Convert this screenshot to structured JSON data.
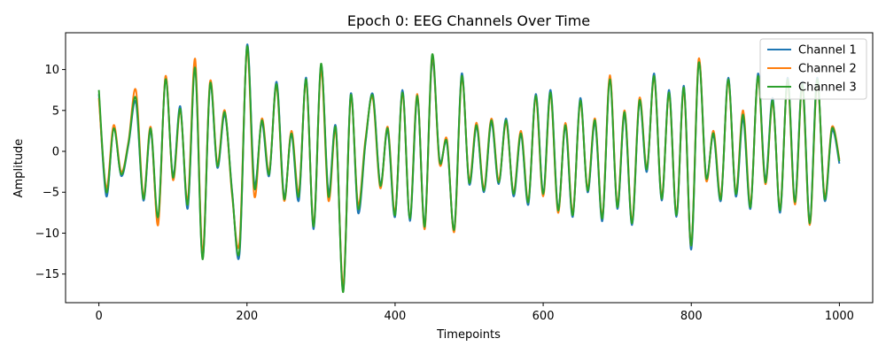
{
  "chart_data": {
    "type": "line",
    "title": "Epoch 0: EEG Channels Over Time",
    "xlabel": "Timepoints",
    "ylabel": "Amplitude",
    "xlim": [
      -45,
      1045
    ],
    "ylim": [
      -18.5,
      14.5
    ],
    "xticks": [
      0,
      200,
      400,
      600,
      800,
      1000
    ],
    "xtick_labels": [
      "0",
      "200",
      "400",
      "600",
      "800",
      "1000"
    ],
    "yticks": [
      10,
      5,
      0,
      -5,
      -10,
      -15
    ],
    "ytick_labels": [
      "10",
      "5",
      "0",
      "−5",
      "−10",
      "−15"
    ],
    "legend_position": "top-right",
    "grid": false,
    "series": [
      {
        "name": "Channel 1",
        "color": "#1f77b4",
        "x": [
          0,
          10,
          20,
          30,
          40,
          50,
          60,
          70,
          80,
          90,
          100,
          110,
          120,
          130,
          140,
          150,
          160,
          170,
          180,
          190,
          200,
          210,
          220,
          230,
          240,
          250,
          260,
          270,
          280,
          290,
          300,
          310,
          320,
          330,
          340,
          350,
          360,
          370,
          380,
          390,
          400,
          410,
          420,
          430,
          440,
          450,
          460,
          470,
          480,
          490,
          500,
          510,
          520,
          530,
          540,
          550,
          560,
          570,
          580,
          590,
          600,
          610,
          620,
          630,
          640,
          650,
          660,
          670,
          680,
          690,
          700,
          710,
          720,
          730,
          740,
          750,
          760,
          770,
          780,
          790,
          800,
          810,
          820,
          830,
          840,
          850,
          860,
          870,
          880,
          890,
          900,
          910,
          920,
          930,
          940,
          950,
          960,
          970,
          980,
          990,
          1000
        ],
        "values": [
          7.0,
          -5.5,
          3.0,
          -3.0,
          0.8,
          6.0,
          -6.0,
          2.5,
          -8.5,
          9.0,
          -3.0,
          5.5,
          -7.0,
          10.5,
          -13.0,
          8.0,
          -2.0,
          4.5,
          -5.0,
          -12.5,
          13.0,
          -4.0,
          3.5,
          -3.0,
          8.5,
          -5.5,
          2.0,
          -6.0,
          9.0,
          -9.5,
          10.5,
          -5.0,
          3.0,
          -17.0,
          7.0,
          -7.5,
          1.0,
          7.0,
          -4.0,
          2.5,
          -8.0,
          7.5,
          -8.5,
          6.5,
          -9.0,
          11.0,
          -1.0,
          1.0,
          -9.5,
          9.5,
          -4.0,
          3.0,
          -5.0,
          3.5,
          -4.0,
          4.0,
          -5.5,
          2.0,
          -6.5,
          7.0,
          -5.0,
          7.5,
          -7.0,
          3.0,
          -8.0,
          6.5,
          -5.0,
          3.5,
          -8.5,
          9.0,
          -7.0,
          4.5,
          -9.0,
          6.0,
          -2.5,
          9.5,
          -6.0,
          7.5,
          -8.0,
          8.0,
          -12.0,
          11.0,
          -3.0,
          2.0,
          -6.0,
          9.0,
          -5.5,
          4.0,
          -7.0,
          9.5,
          -3.5,
          6.5,
          -7.5,
          9.0,
          -6.0,
          8.5,
          -8.5,
          9.0,
          -6.0,
          2.5,
          -1.5
        ]
      },
      {
        "name": "Channel 2",
        "color": "#ff7f0e",
        "x": [
          0,
          10,
          20,
          30,
          40,
          50,
          60,
          70,
          80,
          90,
          100,
          110,
          120,
          130,
          140,
          150,
          160,
          170,
          180,
          190,
          200,
          210,
          220,
          230,
          240,
          250,
          260,
          270,
          280,
          290,
          300,
          310,
          320,
          330,
          340,
          350,
          360,
          370,
          380,
          390,
          400,
          410,
          420,
          430,
          440,
          450,
          460,
          470,
          480,
          490,
          500,
          510,
          520,
          530,
          540,
          550,
          560,
          570,
          580,
          590,
          600,
          610,
          620,
          630,
          640,
          650,
          660,
          670,
          680,
          690,
          700,
          710,
          720,
          730,
          740,
          750,
          760,
          770,
          780,
          790,
          800,
          810,
          820,
          830,
          840,
          850,
          860,
          870,
          880,
          890,
          900,
          910,
          920,
          930,
          940,
          950,
          960,
          970,
          980,
          990,
          1000
        ],
        "values": [
          6.5,
          -4.5,
          3.2,
          -2.5,
          1.2,
          7.5,
          -5.5,
          3.0,
          -9.0,
          9.2,
          -3.5,
          5.0,
          -6.0,
          11.3,
          -12.5,
          8.5,
          -1.5,
          5.0,
          -5.5,
          -11.0,
          12.5,
          -5.5,
          4.0,
          -2.5,
          8.0,
          -6.0,
          2.5,
          -5.0,
          8.5,
          -9.0,
          10.0,
          -6.0,
          2.5,
          -16.5,
          6.5,
          -6.5,
          1.5,
          6.5,
          -4.5,
          3.0,
          -7.5,
          7.0,
          -8.0,
          7.0,
          -9.5,
          11.5,
          -1.5,
          1.5,
          -9.8,
          9.0,
          -3.5,
          3.5,
          -4.5,
          4.0,
          -3.5,
          3.5,
          -5.0,
          2.5,
          -6.0,
          6.5,
          -5.5,
          7.0,
          -7.5,
          3.5,
          -7.5,
          6.0,
          -4.5,
          4.0,
          -8.0,
          9.3,
          -6.5,
          5.0,
          -8.5,
          6.5,
          -2.0,
          9.0,
          -5.5,
          7.0,
          -7.5,
          7.5,
          -11.5,
          11.3,
          -3.5,
          2.5,
          -5.5,
          8.5,
          -5.0,
          5.0,
          -6.5,
          9.0,
          -4.0,
          6.0,
          -7.0,
          8.5,
          -6.5,
          8.0,
          -9.0,
          8.5,
          -5.5,
          3.0,
          -1.0
        ]
      },
      {
        "name": "Channel 3",
        "color": "#2ca02c",
        "x": [
          0,
          10,
          20,
          30,
          40,
          50,
          60,
          70,
          80,
          90,
          100,
          110,
          120,
          130,
          140,
          150,
          160,
          170,
          180,
          190,
          200,
          210,
          220,
          230,
          240,
          250,
          260,
          270,
          280,
          290,
          300,
          310,
          320,
          330,
          340,
          350,
          360,
          370,
          380,
          390,
          400,
          410,
          420,
          430,
          440,
          450,
          460,
          470,
          480,
          490,
          500,
          510,
          520,
          530,
          540,
          550,
          560,
          570,
          580,
          590,
          600,
          610,
          620,
          630,
          640,
          650,
          660,
          670,
          680,
          690,
          700,
          710,
          720,
          730,
          740,
          750,
          760,
          770,
          780,
          790,
          800,
          810,
          820,
          830,
          840,
          850,
          860,
          870,
          880,
          890,
          900,
          910,
          920,
          930,
          940,
          950,
          960,
          970,
          980,
          990,
          1000
        ],
        "values": [
          7.5,
          -5.0,
          2.8,
          -2.8,
          1.0,
          6.5,
          -5.8,
          2.8,
          -8.0,
          8.8,
          -3.2,
          5.2,
          -6.5,
          10.2,
          -13.2,
          8.2,
          -1.8,
          4.8,
          -5.2,
          -12.0,
          12.8,
          -4.5,
          3.8,
          -2.8,
          8.2,
          -5.8,
          2.2,
          -5.5,
          8.8,
          -9.2,
          10.7,
          -5.5,
          2.8,
          -17.2,
          6.8,
          -7.0,
          1.2,
          6.8,
          -4.2,
          2.8,
          -7.8,
          7.2,
          -8.2,
          6.8,
          -9.2,
          11.8,
          -1.2,
          1.2,
          -9.5,
          9.2,
          -3.8,
          3.2,
          -4.8,
          3.8,
          -3.8,
          3.8,
          -5.2,
          2.2,
          -6.2,
          6.8,
          -5.2,
          7.2,
          -7.2,
          3.2,
          -7.8,
          6.2,
          -4.8,
          3.8,
          -8.2,
          8.8,
          -6.8,
          4.8,
          -8.8,
          6.2,
          -2.2,
          9.2,
          -5.8,
          7.2,
          -7.8,
          7.8,
          -11.5,
          10.8,
          -3.2,
          2.2,
          -5.8,
          8.8,
          -5.2,
          4.5,
          -6.8,
          9.2,
          -3.8,
          6.2,
          -7.2,
          8.8,
          -6.2,
          8.2,
          -8.8,
          8.8,
          -5.8,
          2.8,
          -1.2
        ]
      }
    ]
  }
}
